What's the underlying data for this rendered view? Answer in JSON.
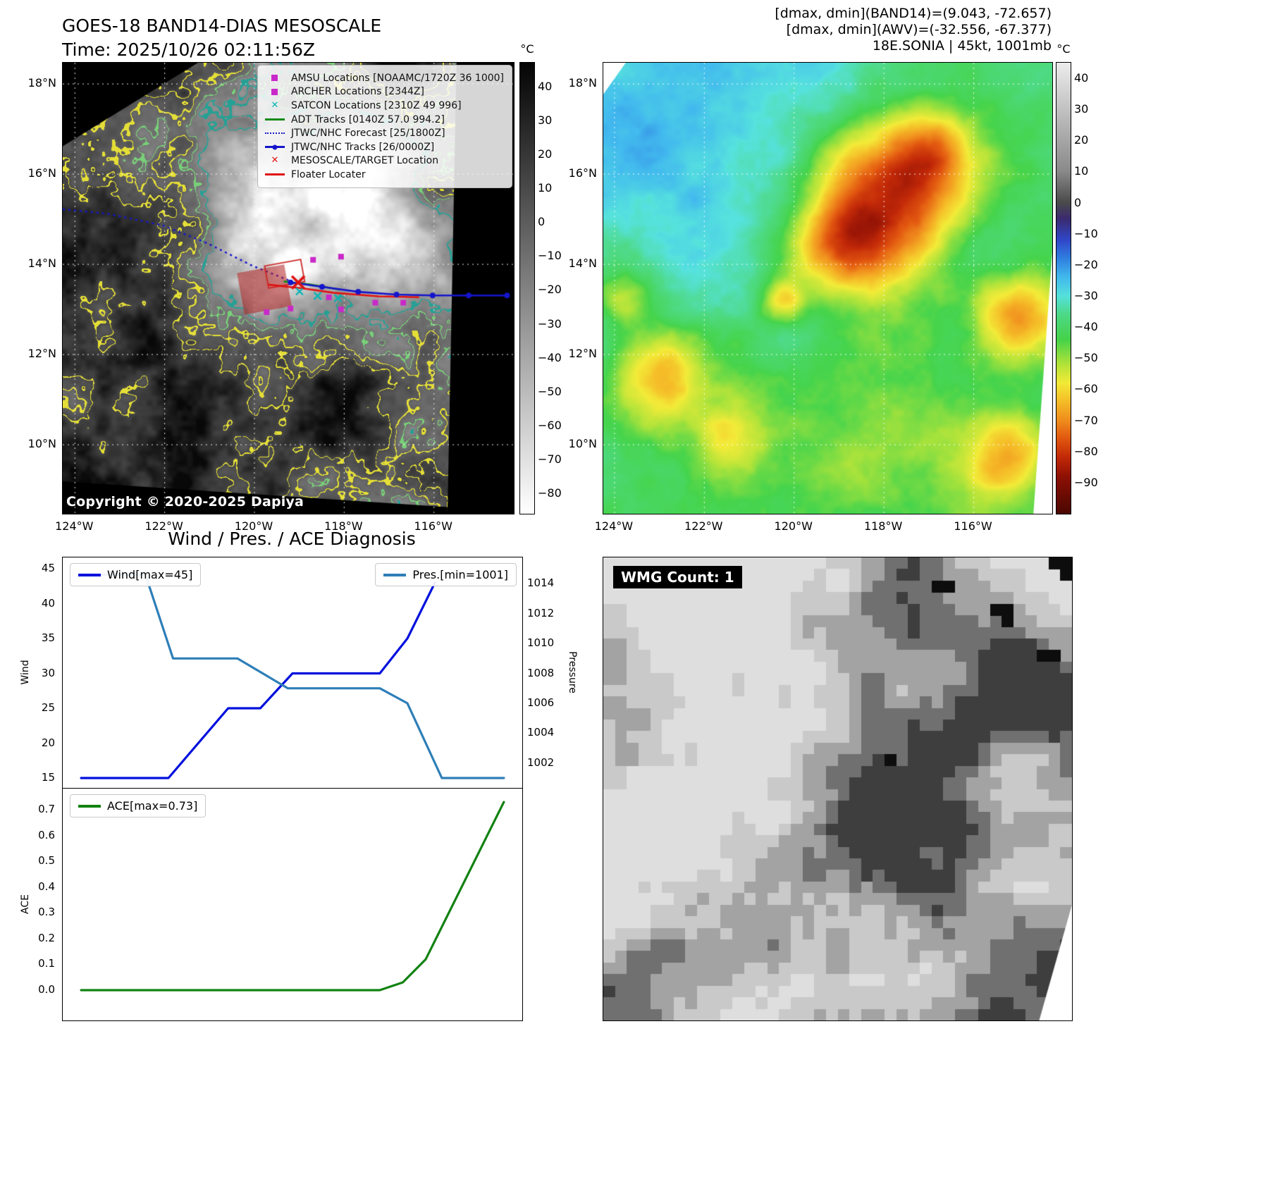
{
  "panel1": {
    "title": "GOES-18 BAND14-DIAS MESOSCALE",
    "subtitle": "Time: 2025/10/26 02:11:56Z",
    "copyright": "Copyright © 2020-2025 Dapiya",
    "lat_ticks": [
      "18°N",
      "16°N",
      "14°N",
      "12°N",
      "10°N"
    ],
    "lon_ticks": [
      "124°W",
      "122°W",
      "120°W",
      "118°W",
      "116°W"
    ],
    "colorbar": {
      "unit": "°C",
      "ticks": [
        "40",
        "30",
        "20",
        "10",
        "0",
        "−10",
        "−20",
        "−30",
        "−40",
        "−50",
        "−60",
        "−70",
        "−80"
      ]
    },
    "legend": [
      {
        "marker": "square",
        "color": "#c929c9",
        "label": "AMSU Locations [NOAAMC/1720Z 36 1000]"
      },
      {
        "marker": "square",
        "color": "#c929c9",
        "label": "ARCHER Locations [2344Z]"
      },
      {
        "marker": "x",
        "color": "#00b5b5",
        "label": "SATCON Locations [2310Z 49 996]"
      },
      {
        "marker": "line",
        "color": "#138a13",
        "label": "ADT Tracks [0140Z 57.0 994.2]"
      },
      {
        "marker": "dotted",
        "color": "#1515cc",
        "label": "JTWC/NHC Forecast [25/1800Z]"
      },
      {
        "marker": "line-dot",
        "color": "#1515cc",
        "label": "JTWC/NHC Tracks [26/0000Z]"
      },
      {
        "marker": "x",
        "color": "#e01212",
        "label": "MESOSCALE/TARGET Location"
      },
      {
        "marker": "line",
        "color": "#e01212",
        "label": "Floater Locater"
      }
    ]
  },
  "panel2": {
    "header_lines": [
      "[dmax, dmin](BAND14)=(9.043, -72.657)",
      "[dmax, dmin](AWV)=(-32.556, -67.377)",
      "18E.SONIA | 45kt, 1001mb"
    ],
    "lat_ticks": [
      "18°N",
      "16°N",
      "14°N",
      "12°N",
      "10°N"
    ],
    "lon_ticks": [
      "124°W",
      "122°W",
      "120°W",
      "118°W",
      "116°W"
    ],
    "colorbar": {
      "unit": "°C",
      "ticks": [
        "40",
        "30",
        "20",
        "10",
        "0",
        "−10",
        "−20",
        "−30",
        "−40",
        "−50",
        "−60",
        "−70",
        "−80",
        "−90"
      ]
    }
  },
  "panel4": {
    "label": "WMG Count: 1"
  },
  "chart_data": {
    "type": "line",
    "title": "Wind / Pres. / ACE Diagnosis",
    "legend_position": "top",
    "grid": false,
    "panels": [
      {
        "name": "wind-pressure",
        "ylabel": "Wind",
        "y2label": "Pressure",
        "ylim": [
          15,
          45
        ],
        "y2lim": [
          1001,
          1015
        ],
        "yticks": [
          45,
          40,
          35,
          30,
          25,
          20,
          15
        ],
        "y2ticks": [
          1014,
          1012,
          1010,
          1008,
          1006,
          1004,
          1002
        ],
        "x_range": [
          0,
          100
        ],
        "x_tick_labels": "none",
        "series": [
          {
            "name": "Wind[max=45]",
            "axis": "y",
            "color": "#0010dd",
            "points": [
              [
                4,
                15
              ],
              [
                23,
                15
              ],
              [
                36,
                25
              ],
              [
                43,
                25
              ],
              [
                50,
                30
              ],
              [
                69,
                30
              ],
              [
                75,
                35
              ],
              [
                81,
                43
              ]
            ]
          },
          {
            "name": "Pres.[min=1001]",
            "axis": "y2",
            "color": "#2e7eb8",
            "points": [
              [
                4,
                1014.6
              ],
              [
                18,
                1014.6
              ],
              [
                24,
                1009
              ],
              [
                38,
                1009
              ],
              [
                49,
                1007
              ],
              [
                69,
                1007
              ],
              [
                75,
                1006
              ],
              [
                82.5,
                1001
              ],
              [
                96,
                1001
              ]
            ]
          }
        ]
      },
      {
        "name": "ace",
        "ylabel": "ACE",
        "ylim": [
          0,
          0.7
        ],
        "yticks": [
          "0.7",
          "0.6",
          "0.5",
          "0.4",
          "0.3",
          "0.2",
          "0.1",
          "0.0"
        ],
        "x_range": [
          0,
          100
        ],
        "x_tick_labels": "none",
        "series": [
          {
            "name": "ACE[max=0.73]",
            "axis": "y",
            "color": "#128212",
            "points": [
              [
                4,
                0
              ],
              [
                69,
                0
              ],
              [
                74,
                0.03
              ],
              [
                79,
                0.12
              ],
              [
                96,
                0.73
              ]
            ]
          }
        ]
      }
    ]
  }
}
